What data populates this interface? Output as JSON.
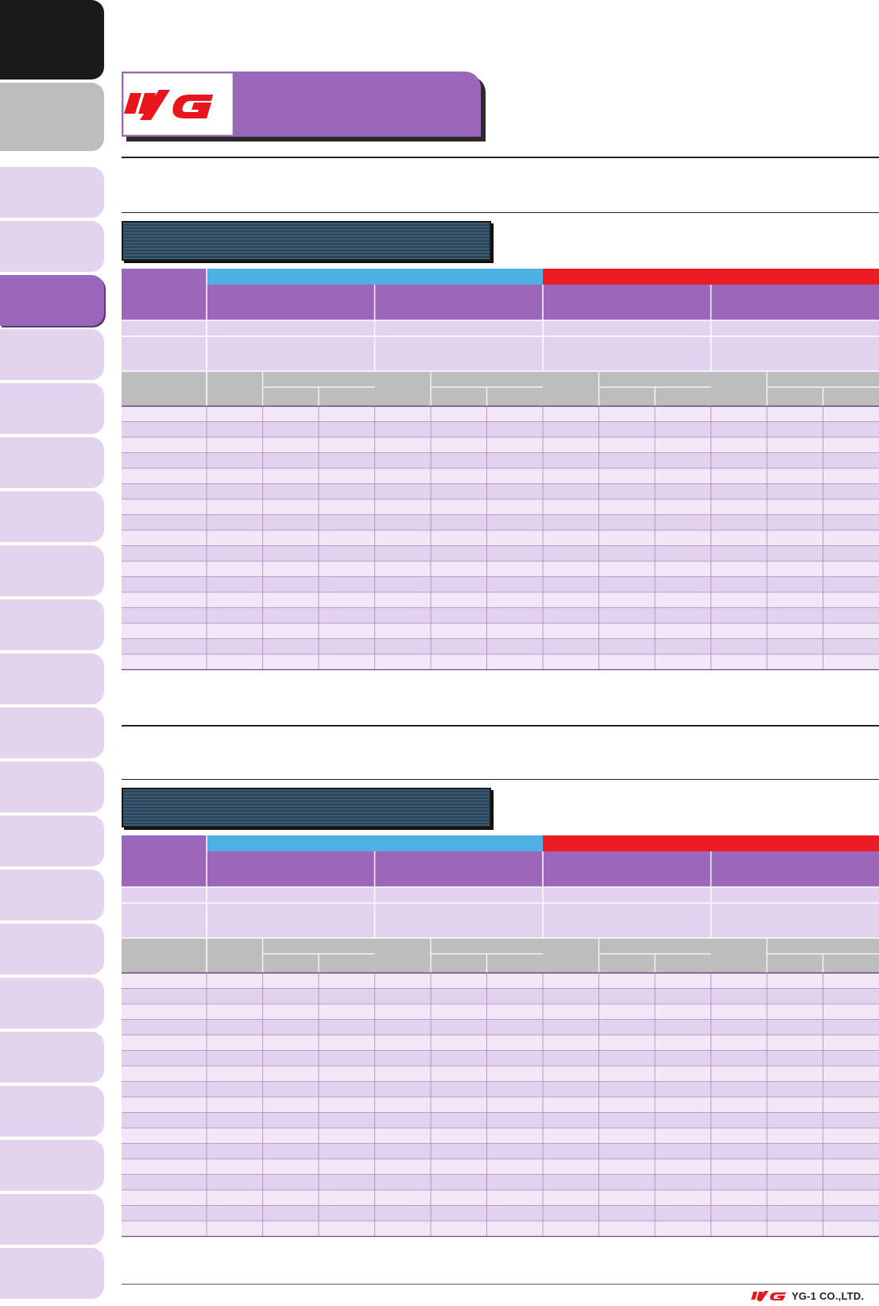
{
  "page": {
    "brand": "YG",
    "section_heading": "",
    "section_description": ""
  },
  "side_tabs": [
    {
      "label": "",
      "state": "dark"
    },
    {
      "label": "",
      "state": "gray"
    },
    {
      "label": "",
      "state": "light"
    },
    {
      "label": "",
      "state": "light"
    },
    {
      "label": "",
      "state": "active"
    },
    {
      "label": "",
      "state": "light"
    },
    {
      "label": "",
      "state": "light"
    },
    {
      "label": "",
      "state": "light"
    },
    {
      "label": "",
      "state": "light"
    },
    {
      "label": "",
      "state": "light"
    },
    {
      "label": "",
      "state": "light"
    },
    {
      "label": "",
      "state": "light"
    },
    {
      "label": "",
      "state": "light"
    },
    {
      "label": "",
      "state": "light"
    },
    {
      "label": "",
      "state": "light"
    },
    {
      "label": "",
      "state": "light"
    },
    {
      "label": "",
      "state": "light"
    },
    {
      "label": "",
      "state": "light"
    },
    {
      "label": "",
      "state": "light"
    },
    {
      "label": "",
      "state": "light"
    },
    {
      "label": "",
      "state": "light"
    },
    {
      "label": "",
      "state": "light"
    },
    {
      "label": "",
      "state": "light"
    }
  ],
  "tables": [
    {
      "banner_title": "",
      "data_rows": 17
    },
    {
      "banner_title": "",
      "data_rows": 17
    }
  ],
  "colors": {
    "accent_purple": "#9c67bb",
    "header_blue": "#4fb0e3",
    "header_red": "#ec1c24",
    "header_gray": "#bdbdbd",
    "cell_light": "#f1e7f6",
    "cell_mid": "#e2d2ee",
    "tab_light": "#e2d3ee",
    "tab_gray": "#bdbdbd",
    "tab_dark": "#1a1a1a"
  },
  "footer": {
    "company": "YG-1 CO.,LTD."
  }
}
